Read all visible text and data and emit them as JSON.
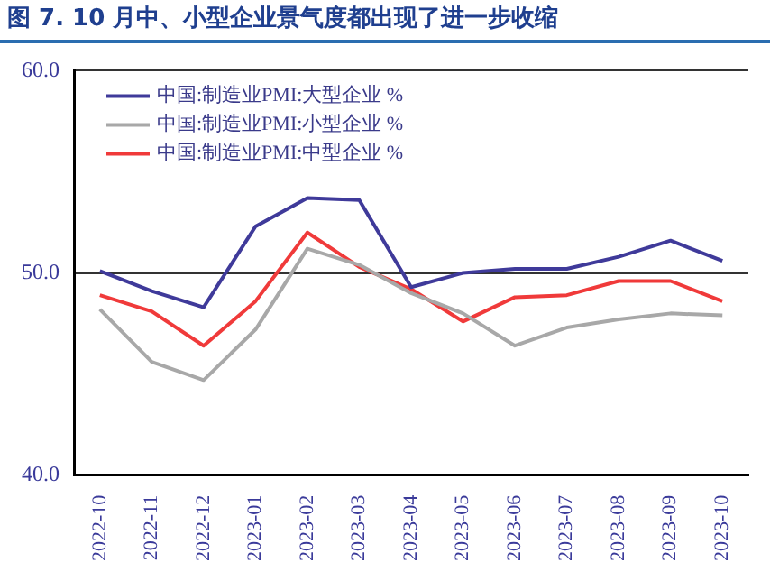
{
  "chart_data": {
    "type": "line",
    "title": "图 7. 10 月中、小型企业景气度都出现了进一步收缩",
    "categories": [
      "2022-10",
      "2022-11",
      "2022-12",
      "2023-01",
      "2023-02",
      "2023-03",
      "2023-04",
      "2023-05",
      "2023-06",
      "2023-07",
      "2023-08",
      "2023-09",
      "2023-10"
    ],
    "series": [
      {
        "name": "中国:制造业PMI:大型企业 %",
        "color": "#3f3a9a",
        "values": [
          50.1,
          49.1,
          48.3,
          52.3,
          53.7,
          53.6,
          49.3,
          50.0,
          50.2,
          50.2,
          50.8,
          51.6,
          50.6
        ]
      },
      {
        "name": "中国:制造业PMI:小型企业 %",
        "color": "#a8a8a8",
        "values": [
          48.2,
          45.6,
          44.7,
          47.2,
          51.2,
          50.4,
          49.0,
          48.0,
          46.4,
          47.3,
          47.7,
          48.0,
          47.9
        ]
      },
      {
        "name": "中国:制造业PMI:中型企业 %",
        "color": "#f03a3a",
        "values": [
          48.9,
          48.1,
          46.4,
          48.6,
          52.0,
          50.3,
          49.2,
          47.6,
          48.8,
          48.9,
          49.6,
          49.6,
          48.6
        ]
      }
    ],
    "ylim": [
      40,
      60
    ],
    "yticks": [
      {
        "value": 40,
        "label": "40.0"
      },
      {
        "value": 50,
        "label": "50.0"
      },
      {
        "value": 60,
        "label": "60.0"
      }
    ],
    "grid": "y",
    "legend": "top left",
    "marker": "none",
    "line_style": "solid"
  }
}
